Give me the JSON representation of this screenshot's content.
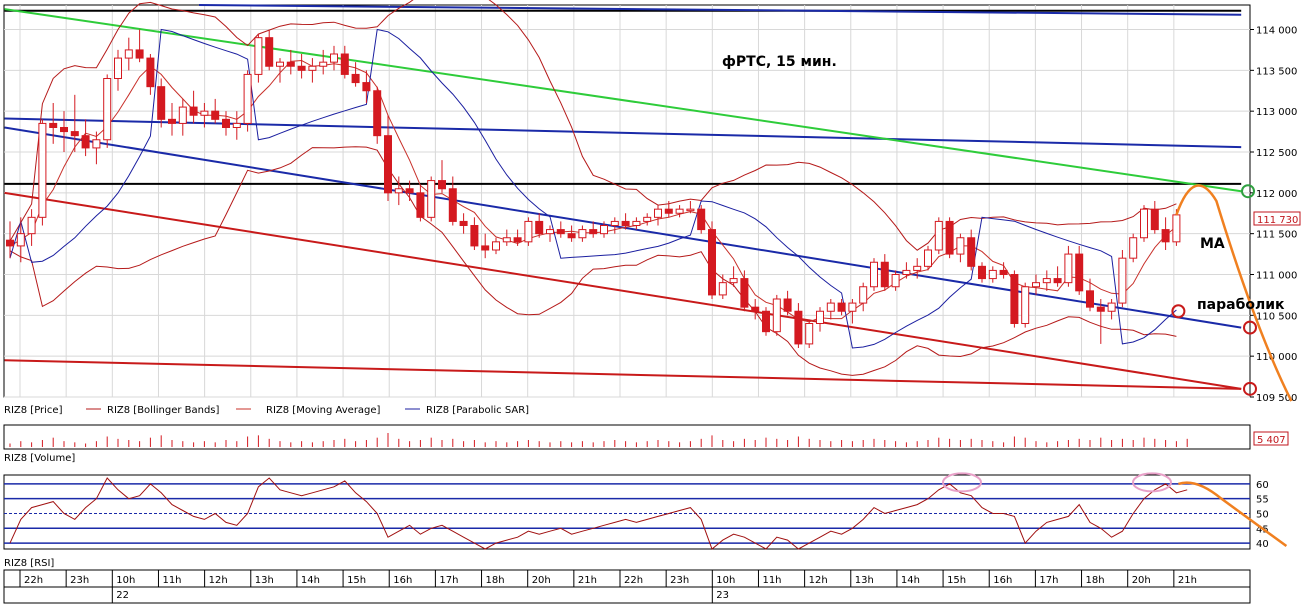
{
  "chart_data": {
    "type": "candlestick",
    "title": "фРТС, 15 мин.",
    "price_panel": {
      "ylim": [
        109500,
        114300
      ],
      "yticks": [
        109500,
        110000,
        110500,
        111000,
        111500,
        112000,
        112500,
        113000,
        113500,
        114000
      ],
      "ytick_labels": [
        "109 500",
        "110 000",
        "110 500",
        "111 000",
        "111 500",
        "112 000",
        "112 500",
        "113 000",
        "113 500",
        "114 000"
      ],
      "last_price_label": "111 730",
      "candles": [
        {
          "o": 111420,
          "h": 111650,
          "l": 111200,
          "c": 111350
        },
        {
          "o": 111350,
          "h": 111700,
          "l": 111150,
          "c": 111500
        },
        {
          "o": 111500,
          "h": 111800,
          "l": 111350,
          "c": 111700
        },
        {
          "o": 111700,
          "h": 112900,
          "l": 111600,
          "c": 112850
        },
        {
          "o": 112850,
          "h": 113100,
          "l": 112600,
          "c": 112800
        },
        {
          "o": 112800,
          "h": 113000,
          "l": 112500,
          "c": 112750
        },
        {
          "o": 112750,
          "h": 113200,
          "l": 112500,
          "c": 112700
        },
        {
          "o": 112700,
          "h": 112900,
          "l": 112450,
          "c": 112550
        },
        {
          "o": 112550,
          "h": 112750,
          "l": 112350,
          "c": 112650
        },
        {
          "o": 112650,
          "h": 113450,
          "l": 112550,
          "c": 113400
        },
        {
          "o": 113400,
          "h": 113750,
          "l": 113250,
          "c": 113650
        },
        {
          "o": 113650,
          "h": 113900,
          "l": 113500,
          "c": 113750
        },
        {
          "o": 113750,
          "h": 114000,
          "l": 113600,
          "c": 113650
        },
        {
          "o": 113650,
          "h": 113700,
          "l": 113200,
          "c": 113300
        },
        {
          "o": 113300,
          "h": 113400,
          "l": 112800,
          "c": 112900
        },
        {
          "o": 112900,
          "h": 113100,
          "l": 112700,
          "c": 112850
        },
        {
          "o": 112850,
          "h": 113150,
          "l": 112700,
          "c": 113050
        },
        {
          "o": 113050,
          "h": 113250,
          "l": 112850,
          "c": 112950
        },
        {
          "o": 112950,
          "h": 113100,
          "l": 112800,
          "c": 113000
        },
        {
          "o": 113000,
          "h": 113150,
          "l": 112850,
          "c": 112900
        },
        {
          "o": 112900,
          "h": 113000,
          "l": 112700,
          "c": 112800
        },
        {
          "o": 112800,
          "h": 113000,
          "l": 112650,
          "c": 112850
        },
        {
          "o": 112850,
          "h": 113500,
          "l": 112750,
          "c": 113450
        },
        {
          "o": 113450,
          "h": 113950,
          "l": 113350,
          "c": 113900
        },
        {
          "o": 113900,
          "h": 114000,
          "l": 113500,
          "c": 113550
        },
        {
          "o": 113550,
          "h": 113650,
          "l": 113350,
          "c": 113600
        },
        {
          "o": 113600,
          "h": 113750,
          "l": 113450,
          "c": 113550
        },
        {
          "o": 113550,
          "h": 113700,
          "l": 113400,
          "c": 113500
        },
        {
          "o": 113500,
          "h": 113650,
          "l": 113350,
          "c": 113550
        },
        {
          "o": 113550,
          "h": 113750,
          "l": 113450,
          "c": 113600
        },
        {
          "o": 113600,
          "h": 113800,
          "l": 113500,
          "c": 113700
        },
        {
          "o": 113700,
          "h": 113800,
          "l": 113400,
          "c": 113450
        },
        {
          "o": 113450,
          "h": 113600,
          "l": 113300,
          "c": 113350
        },
        {
          "o": 113350,
          "h": 113500,
          "l": 113100,
          "c": 113250
        },
        {
          "o": 113250,
          "h": 113300,
          "l": 112600,
          "c": 112700
        },
        {
          "o": 112700,
          "h": 112950,
          "l": 111900,
          "c": 112000
        },
        {
          "o": 112000,
          "h": 112200,
          "l": 111850,
          "c": 112050
        },
        {
          "o": 112050,
          "h": 112150,
          "l": 111900,
          "c": 112000
        },
        {
          "o": 112000,
          "h": 112100,
          "l": 111650,
          "c": 111700
        },
        {
          "o": 111700,
          "h": 112200,
          "l": 111650,
          "c": 112150
        },
        {
          "o": 112150,
          "h": 112400,
          "l": 112000,
          "c": 112050
        },
        {
          "o": 112050,
          "h": 112200,
          "l": 111600,
          "c": 111650
        },
        {
          "o": 111650,
          "h": 111750,
          "l": 111500,
          "c": 111600
        },
        {
          "o": 111600,
          "h": 111700,
          "l": 111300,
          "c": 111350
        },
        {
          "o": 111350,
          "h": 111500,
          "l": 111200,
          "c": 111300
        },
        {
          "o": 111300,
          "h": 111450,
          "l": 111250,
          "c": 111400
        },
        {
          "o": 111400,
          "h": 111550,
          "l": 111350,
          "c": 111450
        },
        {
          "o": 111450,
          "h": 111550,
          "l": 111350,
          "c": 111400
        },
        {
          "o": 111400,
          "h": 111700,
          "l": 111350,
          "c": 111650
        },
        {
          "o": 111650,
          "h": 111750,
          "l": 111450,
          "c": 111500
        },
        {
          "o": 111500,
          "h": 111600,
          "l": 111400,
          "c": 111550
        },
        {
          "o": 111550,
          "h": 111650,
          "l": 111450,
          "c": 111500
        },
        {
          "o": 111500,
          "h": 111600,
          "l": 111400,
          "c": 111450
        },
        {
          "o": 111450,
          "h": 111600,
          "l": 111400,
          "c": 111550
        },
        {
          "o": 111550,
          "h": 111650,
          "l": 111450,
          "c": 111500
        },
        {
          "o": 111500,
          "h": 111650,
          "l": 111450,
          "c": 111600
        },
        {
          "o": 111600,
          "h": 111700,
          "l": 111500,
          "c": 111650
        },
        {
          "o": 111650,
          "h": 111750,
          "l": 111550,
          "c": 111600
        },
        {
          "o": 111600,
          "h": 111700,
          "l": 111550,
          "c": 111650
        },
        {
          "o": 111650,
          "h": 111750,
          "l": 111600,
          "c": 111700
        },
        {
          "o": 111700,
          "h": 111850,
          "l": 111600,
          "c": 111800
        },
        {
          "o": 111800,
          "h": 111900,
          "l": 111700,
          "c": 111750
        },
        {
          "o": 111750,
          "h": 111850,
          "l": 111700,
          "c": 111800
        },
        {
          "o": 111800,
          "h": 111900,
          "l": 111750,
          "c": 111800
        },
        {
          "o": 111800,
          "h": 111850,
          "l": 111500,
          "c": 111550
        },
        {
          "o": 111550,
          "h": 111650,
          "l": 110700,
          "c": 110750
        },
        {
          "o": 110750,
          "h": 111000,
          "l": 110700,
          "c": 110900
        },
        {
          "o": 110900,
          "h": 111100,
          "l": 110850,
          "c": 110950
        },
        {
          "o": 110950,
          "h": 111050,
          "l": 110550,
          "c": 110600
        },
        {
          "o": 110600,
          "h": 110700,
          "l": 110450,
          "c": 110550
        },
        {
          "o": 110550,
          "h": 110600,
          "l": 110250,
          "c": 110300
        },
        {
          "o": 110300,
          "h": 110750,
          "l": 110250,
          "c": 110700
        },
        {
          "o": 110700,
          "h": 110800,
          "l": 110500,
          "c": 110550
        },
        {
          "o": 110550,
          "h": 110650,
          "l": 110100,
          "c": 110150
        },
        {
          "o": 110150,
          "h": 110450,
          "l": 110100,
          "c": 110400
        },
        {
          "o": 110400,
          "h": 110600,
          "l": 110300,
          "c": 110550
        },
        {
          "o": 110550,
          "h": 110700,
          "l": 110450,
          "c": 110650
        },
        {
          "o": 110650,
          "h": 110700,
          "l": 110500,
          "c": 110550
        },
        {
          "o": 110550,
          "h": 110700,
          "l": 110400,
          "c": 110650
        },
        {
          "o": 110650,
          "h": 110900,
          "l": 110550,
          "c": 110850
        },
        {
          "o": 110850,
          "h": 111200,
          "l": 110800,
          "c": 111150
        },
        {
          "o": 111150,
          "h": 111250,
          "l": 110800,
          "c": 110850
        },
        {
          "o": 110850,
          "h": 111050,
          "l": 110800,
          "c": 111000
        },
        {
          "o": 111000,
          "h": 111150,
          "l": 110950,
          "c": 111050
        },
        {
          "o": 111050,
          "h": 111200,
          "l": 110950,
          "c": 111100
        },
        {
          "o": 111100,
          "h": 111350,
          "l": 111050,
          "c": 111300
        },
        {
          "o": 111300,
          "h": 111700,
          "l": 111250,
          "c": 111650
        },
        {
          "o": 111650,
          "h": 111700,
          "l": 111200,
          "c": 111250
        },
        {
          "o": 111250,
          "h": 111500,
          "l": 111150,
          "c": 111450
        },
        {
          "o": 111450,
          "h": 111550,
          "l": 111050,
          "c": 111100
        },
        {
          "o": 111100,
          "h": 111150,
          "l": 110900,
          "c": 110950
        },
        {
          "o": 110950,
          "h": 111100,
          "l": 110900,
          "c": 111050
        },
        {
          "o": 111050,
          "h": 111150,
          "l": 110950,
          "c": 111000
        },
        {
          "o": 111000,
          "h": 111050,
          "l": 110350,
          "c": 110400
        },
        {
          "o": 110400,
          "h": 110900,
          "l": 110350,
          "c": 110850
        },
        {
          "o": 110850,
          "h": 111000,
          "l": 110750,
          "c": 110900
        },
        {
          "o": 110900,
          "h": 111050,
          "l": 110800,
          "c": 110950
        },
        {
          "o": 110950,
          "h": 111100,
          "l": 110850,
          "c": 110900
        },
        {
          "o": 110900,
          "h": 111350,
          "l": 110850,
          "c": 111250
        },
        {
          "o": 111250,
          "h": 111350,
          "l": 110750,
          "c": 110800
        },
        {
          "o": 110800,
          "h": 110950,
          "l": 110550,
          "c": 110600
        },
        {
          "o": 110600,
          "h": 110700,
          "l": 110150,
          "c": 110550
        },
        {
          "o": 110550,
          "h": 110700,
          "l": 110450,
          "c": 110650
        },
        {
          "o": 110650,
          "h": 111300,
          "l": 110600,
          "c": 111200
        },
        {
          "o": 111200,
          "h": 111500,
          "l": 111150,
          "c": 111450
        },
        {
          "o": 111450,
          "h": 111850,
          "l": 111400,
          "c": 111800
        },
        {
          "o": 111800,
          "h": 111900,
          "l": 111500,
          "c": 111550
        },
        {
          "o": 111550,
          "h": 111700,
          "l": 111300,
          "c": 111400
        },
        {
          "o": 111400,
          "h": 111800,
          "l": 111350,
          "c": 111730
        }
      ]
    },
    "volume_panel": {
      "label_right": "5 407",
      "values": [
        3,
        5,
        4,
        6,
        8,
        5,
        4,
        3,
        5,
        9,
        7,
        6,
        5,
        8,
        10,
        6,
        5,
        4,
        5,
        4,
        6,
        5,
        9,
        10,
        7,
        5,
        4,
        5,
        4,
        5,
        6,
        7,
        5,
        6,
        8,
        12,
        7,
        5,
        6,
        8,
        6,
        7,
        5,
        6,
        4,
        5,
        4,
        5,
        6,
        5,
        4,
        5,
        4,
        5,
        4,
        5,
        6,
        5,
        4,
        5,
        6,
        5,
        4,
        5,
        7,
        10,
        6,
        5,
        7,
        6,
        8,
        7,
        6,
        9,
        7,
        6,
        5,
        6,
        5,
        6,
        7,
        6,
        5,
        4,
        5,
        6,
        8,
        7,
        6,
        7,
        6,
        5,
        4,
        9,
        8,
        5,
        4,
        5,
        6,
        7,
        6,
        8,
        6,
        7,
        6,
        8,
        7,
        6,
        5,
        7
      ]
    },
    "rsi_panel": {
      "ylim": [
        38,
        63
      ],
      "yticks": [
        40,
        45,
        50,
        55,
        60
      ],
      "levels": [
        60,
        55,
        50,
        45,
        40
      ],
      "values": [
        40,
        48,
        52,
        53,
        54,
        50,
        48,
        52,
        55,
        62,
        58,
        55,
        56,
        60,
        57,
        53,
        51,
        49,
        48,
        50,
        47,
        46,
        50,
        59,
        62,
        58,
        57,
        56,
        57,
        58,
        59,
        61,
        57,
        54,
        50,
        42,
        44,
        46,
        43,
        45,
        46,
        44,
        42,
        40,
        38,
        40,
        41,
        42,
        44,
        43,
        44,
        45,
        43,
        44,
        45,
        46,
        47,
        48,
        47,
        48,
        49,
        50,
        51,
        52,
        48,
        38,
        41,
        43,
        42,
        40,
        38,
        42,
        41,
        38,
        40,
        42,
        44,
        43,
        45,
        48,
        52,
        50,
        51,
        52,
        53,
        55,
        58,
        60,
        57,
        56,
        52,
        50,
        50,
        49,
        40,
        44,
        47,
        48,
        49,
        53,
        47,
        45,
        42,
        44,
        50,
        55,
        58,
        60,
        57,
        58
      ]
    },
    "x_axis": {
      "hour_labels": [
        "22h",
        "23h",
        "10h",
        "11h",
        "12h",
        "13h",
        "14h",
        "15h",
        "16h",
        "17h",
        "18h",
        "20h",
        "21h",
        "22h",
        "23h",
        "10h",
        "11h",
        "12h",
        "13h",
        "14h",
        "15h",
        "16h",
        "17h",
        "18h",
        "20h",
        "21h"
      ],
      "day_labels": [
        "22",
        "23"
      ]
    },
    "legend": {
      "price": "RIZ8 [Price]",
      "bollinger": "RIZ8 [Bollinger Bands]",
      "ma": "RIZ8 [Moving Average]",
      "sar": "RIZ8 [Parabolic SAR]",
      "volume": "RIZ8 [Volume]",
      "rsi": "RIZ8 [RSI]"
    },
    "annotations": {
      "ma": "MA",
      "parabolic": "параболик"
    },
    "colors": {
      "candle": "#d41920",
      "bollinger": "#b51a1a",
      "ma": "#c8302a",
      "sar": "#1b1fa0",
      "trend_green": "#2ecc3a",
      "trend_blue": "#1a2aa8",
      "trend_red": "#c81a1a",
      "forecast": "#f08020",
      "rsi_line": "#a01010",
      "grid": "#d8d8d8"
    }
  }
}
